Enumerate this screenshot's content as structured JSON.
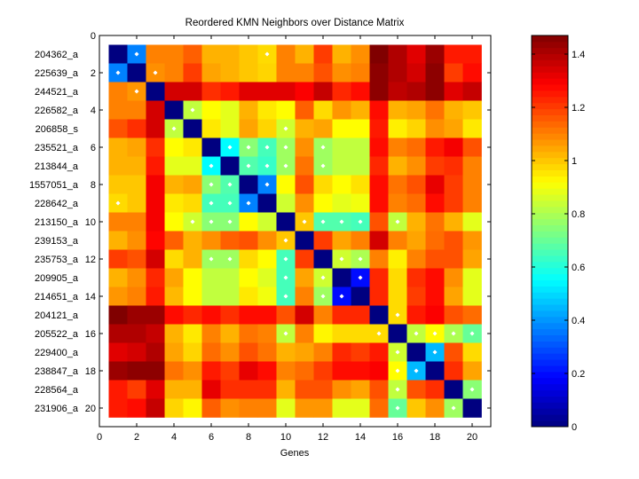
{
  "chart_data": {
    "type": "heatmap",
    "title": "Reordered KMN Neighbors over Distance Matrix",
    "xlabel": "Genes",
    "ylabel": "",
    "xlim": [
      0,
      21
    ],
    "ylim": [
      0,
      21
    ],
    "x_ticks": [
      "0",
      "2",
      "4",
      "6",
      "8",
      "10",
      "12",
      "14",
      "16",
      "18",
      "20"
    ],
    "y_ticks": [
      "0",
      "2",
      "4",
      "6",
      "8",
      "10",
      "12",
      "14",
      "16",
      "18",
      "20"
    ],
    "row_labels": [
      "204362_a",
      "225639_a",
      "244521_a",
      "226582_a",
      "206858_s",
      "235521_a",
      "213844_a",
      "1557051_a",
      "228642_a",
      "213150_a",
      "239153_a",
      "235753_a",
      "209905_a",
      "214651_a",
      "204121_a",
      "205522_a",
      "229400_a",
      "238847_a",
      "228564_a",
      "231906_a"
    ],
    "colormap": "jet",
    "clim": [
      0,
      1.47
    ],
    "colorbar_ticks": [
      "0",
      "0.2",
      "0.4",
      "0.6",
      "0.8",
      "1",
      "1.2",
      "1.4"
    ],
    "values": [
      [
        0,
        0.37,
        1.1,
        1.1,
        1.15,
        1.03,
        1.03,
        1.0,
        0.97,
        1.1,
        1.03,
        1.2,
        1.03,
        1.08,
        1.47,
        1.4,
        1.33,
        1.43,
        1.25,
        1.25
      ],
      [
        0.37,
        0,
        1.08,
        1.1,
        1.2,
        1.05,
        1.03,
        1.0,
        0.98,
        1.1,
        1.1,
        1.17,
        1.08,
        1.1,
        1.45,
        1.4,
        1.35,
        1.45,
        1.2,
        1.27
      ],
      [
        1.1,
        1.07,
        0,
        1.35,
        1.35,
        1.22,
        1.25,
        1.33,
        1.33,
        1.33,
        1.29,
        1.37,
        1.23,
        1.27,
        1.45,
        1.38,
        1.4,
        1.45,
        1.33,
        1.37
      ],
      [
        1.1,
        1.1,
        1.35,
        0,
        0.83,
        0.92,
        0.88,
        1.03,
        0.95,
        0.92,
        1.15,
        0.97,
        1.07,
        1.03,
        1.27,
        1.03,
        1.05,
        1.12,
        1.03,
        1.0
      ],
      [
        1.17,
        1.22,
        1.35,
        0.83,
        0,
        0.95,
        0.88,
        1.05,
        0.98,
        0.85,
        1.03,
        1.05,
        0.92,
        0.92,
        1.25,
        0.94,
        0.98,
        1.08,
        1.05,
        0.95
      ],
      [
        1.03,
        1.05,
        1.22,
        0.92,
        0.95,
        0,
        0.55,
        0.75,
        0.65,
        0.78,
        1.08,
        0.78,
        0.83,
        0.83,
        1.27,
        1.1,
        1.13,
        1.25,
        1.3,
        1.17
      ],
      [
        1.03,
        1.03,
        1.25,
        0.88,
        0.88,
        0.55,
        0,
        0.67,
        0.63,
        0.78,
        1.12,
        0.78,
        0.83,
        0.83,
        1.23,
        1.03,
        1.08,
        1.2,
        1.22,
        1.1
      ],
      [
        1.0,
        1.0,
        1.3,
        1.03,
        1.05,
        0.75,
        0.67,
        0,
        0.37,
        0.92,
        1.17,
        0.97,
        0.92,
        0.96,
        1.27,
        1.12,
        1.17,
        1.32,
        1.2,
        1.1
      ],
      [
        0.97,
        1.0,
        1.3,
        0.95,
        0.97,
        0.65,
        0.65,
        0.37,
        0,
        0.85,
        1.08,
        0.92,
        0.88,
        0.9,
        1.27,
        1.1,
        1.13,
        1.27,
        1.2,
        1.1
      ],
      [
        1.1,
        1.1,
        1.3,
        0.92,
        0.85,
        0.75,
        0.75,
        0.92,
        0.85,
        0,
        1.0,
        0.67,
        0.67,
        0.65,
        1.17,
        0.83,
        1.03,
        1.12,
        1.03,
        0.88
      ],
      [
        1.03,
        1.08,
        1.28,
        1.15,
        1.03,
        1.08,
        1.15,
        1.17,
        1.08,
        1.0,
        0,
        1.2,
        1.05,
        1.1,
        1.35,
        1.1,
        1.05,
        1.13,
        1.17,
        1.07
      ],
      [
        1.2,
        1.17,
        1.35,
        0.97,
        1.03,
        0.78,
        0.78,
        0.97,
        0.92,
        0.65,
        1.2,
        0,
        0.85,
        0.8,
        1.1,
        0.94,
        1.1,
        1.17,
        1.17,
        1.05
      ],
      [
        1.03,
        1.08,
        1.23,
        1.05,
        0.92,
        0.83,
        0.83,
        0.92,
        0.87,
        0.65,
        1.05,
        0.85,
        0,
        0.2,
        1.23,
        0.97,
        1.22,
        1.27,
        1.08,
        0.88
      ],
      [
        1.07,
        1.1,
        1.25,
        1.02,
        0.92,
        0.83,
        0.83,
        0.95,
        0.9,
        0.65,
        1.1,
        0.78,
        0.2,
        0,
        1.23,
        0.97,
        1.2,
        1.27,
        1.05,
        0.88
      ],
      [
        1.47,
        1.43,
        1.43,
        1.27,
        1.23,
        1.27,
        1.22,
        1.27,
        1.27,
        1.17,
        1.35,
        1.1,
        1.23,
        1.23,
        0,
        0.97,
        1.25,
        1.29,
        1.17,
        1.13
      ],
      [
        1.4,
        1.4,
        1.37,
        1.03,
        0.95,
        1.1,
        1.03,
        1.12,
        1.1,
        0.83,
        1.1,
        0.93,
        0.97,
        0.97,
        0.97,
        0,
        0.83,
        0.92,
        0.8,
        0.7
      ],
      [
        1.33,
        1.35,
        1.4,
        1.05,
        0.98,
        1.13,
        1.08,
        1.17,
        1.12,
        1.03,
        1.05,
        1.1,
        1.23,
        1.2,
        1.25,
        0.85,
        0,
        0.45,
        1.17,
        0.97
      ],
      [
        1.43,
        1.45,
        1.45,
        1.12,
        1.08,
        1.25,
        1.2,
        1.32,
        1.27,
        1.1,
        1.13,
        1.2,
        1.27,
        1.27,
        1.29,
        0.92,
        0.45,
        0,
        1.22,
        1.05
      ],
      [
        1.25,
        1.2,
        1.33,
        1.03,
        1.03,
        1.32,
        1.22,
        1.22,
        1.22,
        1.03,
        1.17,
        1.17,
        1.08,
        1.05,
        1.17,
        0.83,
        1.17,
        1.22,
        0,
        0.75
      ],
      [
        1.25,
        1.27,
        1.37,
        0.98,
        0.93,
        1.15,
        1.08,
        1.1,
        1.1,
        0.88,
        1.07,
        1.07,
        0.88,
        0.88,
        1.13,
        0.7,
        1.0,
        1.08,
        0.78,
        0
      ]
    ],
    "neighbor_markers": [
      [
        1,
        2
      ],
      [
        1,
        9
      ],
      [
        2,
        1
      ],
      [
        2,
        3
      ],
      [
        3,
        2
      ],
      [
        4,
        5
      ],
      [
        5,
        4
      ],
      [
        5,
        10
      ],
      [
        6,
        7
      ],
      [
        6,
        8
      ],
      [
        6,
        9
      ],
      [
        6,
        10
      ],
      [
        6,
        12
      ],
      [
        7,
        6
      ],
      [
        7,
        8
      ],
      [
        7,
        9
      ],
      [
        7,
        10
      ],
      [
        7,
        12
      ],
      [
        8,
        6
      ],
      [
        8,
        7
      ],
      [
        8,
        9
      ],
      [
        9,
        1
      ],
      [
        9,
        6
      ],
      [
        9,
        7
      ],
      [
        9,
        8
      ],
      [
        10,
        5
      ],
      [
        10,
        6
      ],
      [
        10,
        7
      ],
      [
        10,
        11
      ],
      [
        10,
        12
      ],
      [
        10,
        13
      ],
      [
        10,
        14
      ],
      [
        10,
        16
      ],
      [
        11,
        10
      ],
      [
        12,
        6
      ],
      [
        12,
        7
      ],
      [
        12,
        10
      ],
      [
        12,
        13
      ],
      [
        12,
        14
      ],
      [
        13,
        10
      ],
      [
        13,
        12
      ],
      [
        13,
        14
      ],
      [
        14,
        10
      ],
      [
        14,
        12
      ],
      [
        14,
        13
      ],
      [
        15,
        16
      ],
      [
        16,
        10
      ],
      [
        16,
        15
      ],
      [
        16,
        17
      ],
      [
        16,
        18
      ],
      [
        16,
        19
      ],
      [
        16,
        20
      ],
      [
        17,
        16
      ],
      [
        17,
        18
      ],
      [
        18,
        16
      ],
      [
        18,
        17
      ],
      [
        19,
        16
      ],
      [
        19,
        20
      ],
      [
        20,
        16
      ],
      [
        20,
        19
      ]
    ],
    "marker_color": "#ffffff"
  }
}
